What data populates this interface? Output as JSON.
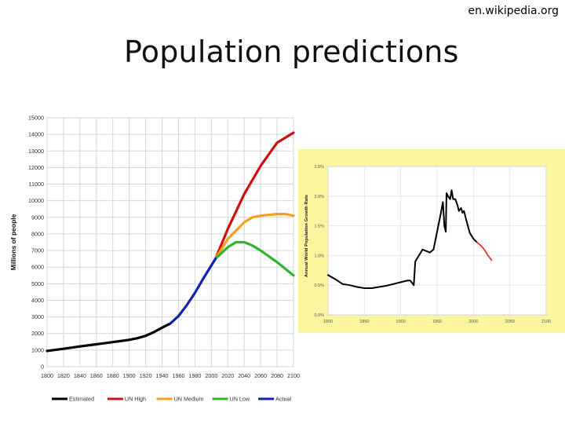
{
  "header": {
    "source": "en.wikipedia.org",
    "title": "Population predictions"
  },
  "chart_data": [
    {
      "type": "line",
      "title": "",
      "xlabel": "",
      "ylabel": "Millions of people",
      "xlim": [
        1800,
        2100
      ],
      "ylim": [
        0,
        15000
      ],
      "x_ticks": [
        1800,
        1820,
        1840,
        1860,
        1880,
        1900,
        1920,
        1940,
        1960,
        1980,
        2000,
        2020,
        2040,
        2060,
        2080,
        2100
      ],
      "y_ticks": [
        0,
        1000,
        2000,
        3000,
        4000,
        5000,
        6000,
        7000,
        8000,
        9000,
        10000,
        11000,
        12000,
        13000,
        14000,
        15000
      ],
      "grid": true,
      "legend_position": "bottom",
      "series": [
        {
          "name": "Estimated",
          "color": "#000000",
          "x": [
            1800,
            1820,
            1840,
            1860,
            1880,
            1900,
            1910,
            1920,
            1930,
            1940,
            1950
          ],
          "y": [
            950,
            1080,
            1220,
            1350,
            1480,
            1620,
            1720,
            1860,
            2080,
            2350,
            2600
          ]
        },
        {
          "name": "UN High",
          "color": "#d01010",
          "x": [
            2005,
            2020,
            2040,
            2060,
            2080,
            2100
          ],
          "y": [
            6500,
            8300,
            10400,
            12100,
            13500,
            14100
          ]
        },
        {
          "name": "UN Medium",
          "color": "#f5a020",
          "x": [
            2005,
            2020,
            2040,
            2050,
            2060,
            2080,
            2090,
            2100
          ],
          "y": [
            6500,
            7700,
            8700,
            9000,
            9100,
            9200,
            9200,
            9100
          ]
        },
        {
          "name": "UN Low",
          "color": "#2fb52f",
          "x": [
            2005,
            2020,
            2030,
            2040,
            2050,
            2060,
            2080,
            2100
          ],
          "y": [
            6500,
            7200,
            7500,
            7500,
            7300,
            7000,
            6300,
            5500
          ]
        },
        {
          "name": "Actual",
          "color": "#1020b0",
          "x": [
            1950,
            1960,
            1970,
            1980,
            1990,
            2000,
            2005
          ],
          "y": [
            2600,
            3050,
            3700,
            4450,
            5300,
            6100,
            6500
          ]
        }
      ]
    },
    {
      "type": "line",
      "title": "",
      "xlabel": "",
      "ylabel": "Annual World Population Growth Rate",
      "xlim": [
        1800,
        2100
      ],
      "ylim": [
        0,
        2.5
      ],
      "x_ticks": [
        1800,
        1850,
        1900,
        1950,
        2000,
        2050,
        2100
      ],
      "y_tick_labels": [
        "0.0%",
        "0.5%",
        "1.0%",
        "1.5%",
        "2.0%",
        "2.5%"
      ],
      "y_tick_values": [
        0,
        0.5,
        1,
        1.5,
        2,
        2.5
      ],
      "grid": true,
      "background": "#fbf5a0",
      "series": [
        {
          "name": "",
          "color": "#000000",
          "x": [
            1800,
            1810,
            1820,
            1830,
            1840,
            1850,
            1860,
            1870,
            1880,
            1890,
            1900,
            1910,
            1913,
            1918,
            1920,
            1930,
            1940,
            1945,
            1950,
            1955,
            1958,
            1960,
            1962,
            1963,
            1965,
            1968,
            1970,
            1972,
            1975,
            1978,
            1980,
            1983,
            1985,
            1987,
            1990,
            1995,
            2000,
            2005
          ],
          "y": [
            0.67,
            0.6,
            0.52,
            0.5,
            0.47,
            0.45,
            0.45,
            0.47,
            0.49,
            0.52,
            0.55,
            0.58,
            0.58,
            0.5,
            0.9,
            1.1,
            1.05,
            1.1,
            1.4,
            1.7,
            1.9,
            1.5,
            1.4,
            2.05,
            2.0,
            1.95,
            2.1,
            1.95,
            1.95,
            1.85,
            1.75,
            1.8,
            1.72,
            1.75,
            1.6,
            1.38,
            1.28,
            1.22
          ]
        },
        {
          "name": "",
          "color": "#e03030",
          "x": [
            2005,
            2010,
            2015,
            2020,
            2025
          ],
          "y": [
            1.22,
            1.17,
            1.1,
            1.0,
            0.92
          ]
        }
      ]
    }
  ]
}
